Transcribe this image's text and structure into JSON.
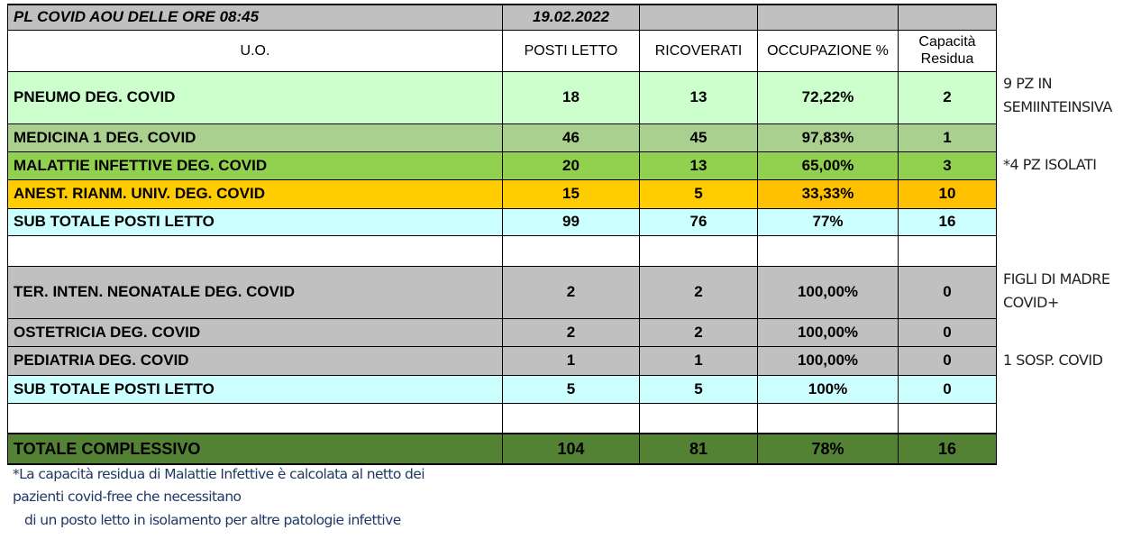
{
  "title": {
    "label": "PL COVID AOU DELLE ORE  08:45",
    "date": "19.02.2022"
  },
  "headers": {
    "uo": "U.O.",
    "posti_letto": "POSTI LETTO",
    "ricoverati": "RICOVERATI",
    "occupazione": "OCCUPAZIONE %",
    "capacita": "Capacità Residua"
  },
  "colors": {
    "title_bg": "#c0c0c0",
    "pneumo": "#ccffcc",
    "medicina": "#a9d08e",
    "malattie": "#92d050",
    "anest": "#ffcc00",
    "anest_highlight": "#ffc000",
    "subtotal": "#ccffff",
    "gray": "#c0c0c0",
    "totale": "#548235",
    "footnote_text": "#1f3864"
  },
  "rows": [
    {
      "uo": "PNEUMO  DEG. COVID",
      "posti_letto": "18",
      "ricoverati": "13",
      "occupazione": "72,22%",
      "capacita": "2",
      "bg": "#ccffcc"
    },
    {
      "uo": "MEDICINA 1 DEG. COVID",
      "posti_letto": "46",
      "ricoverati": "45",
      "occupazione": "97,83%",
      "capacita": "1",
      "bg": "#a9d08e"
    },
    {
      "uo": "MALATTIE INFETTIVE  DEG. COVID",
      "posti_letto": "20",
      "ricoverati": "13",
      "occupazione": "65,00%",
      "capacita": "3",
      "bg": "#92d050"
    },
    {
      "uo": "ANEST. RIANM. UNIV. DEG. COVID",
      "posti_letto": "15",
      "ricoverati": "5",
      "occupazione": "33,33%",
      "capacita": "10",
      "bg": "#ffcc00",
      "hl": "#ffc000"
    },
    {
      "uo": "SUB TOTALE POSTI LETTO",
      "posti_letto": "99",
      "ricoverati": "76",
      "occupazione": "77%",
      "capacita": "16",
      "bg": "#ccffff"
    },
    {
      "uo": "",
      "posti_letto": "",
      "ricoverati": "",
      "occupazione": "",
      "capacita": "",
      "bg": "#ffffff"
    },
    {
      "uo": "TER. INTEN. NEONATALE DEG. COVID",
      "posti_letto": "2",
      "ricoverati": "2",
      "occupazione": "100,00%",
      "capacita": "0",
      "bg": "#c0c0c0"
    },
    {
      "uo": "OSTETRICIA DEG.  COVID",
      "posti_letto": "2",
      "ricoverati": "2",
      "occupazione": "100,00%",
      "capacita": "0",
      "bg": "#c0c0c0"
    },
    {
      "uo": "PEDIATRIA DEG.  COVID",
      "posti_letto": "1",
      "ricoverati": "1",
      "occupazione": "100,00%",
      "capacita": "0",
      "bg": "#c0c0c0"
    },
    {
      "uo": "SUB TOTALE POSTI LETTO",
      "posti_letto": "5",
      "ricoverati": "5",
      "occupazione": "100%",
      "capacita": "0",
      "bg": "#ccffff"
    },
    {
      "uo": "",
      "posti_letto": "",
      "ricoverati": "",
      "occupazione": "",
      "capacita": "",
      "bg": "#ffffff"
    }
  ],
  "totale": {
    "uo": "TOTALE  COMPLESSIVO",
    "posti_letto": "104",
    "ricoverati": "81",
    "occupazione": "78%",
    "capacita": "16"
  },
  "notes": {
    "pneumo": [
      "9 PZ IN",
      "SEMIINTEINSIVA"
    ],
    "malattie": "*4 PZ  ISOLATI",
    "neonatale": [
      "FIGLI DI MADRE",
      "COVID+"
    ],
    "pediatria": "1 SOSP. COVID"
  },
  "footnote": [
    "*La capacità residua di Malattie Infettive è calcolata al netto dei",
    "pazienti covid-free che necessitano",
    "   di un posto letto in isolamento per altre patologie infettive"
  ]
}
